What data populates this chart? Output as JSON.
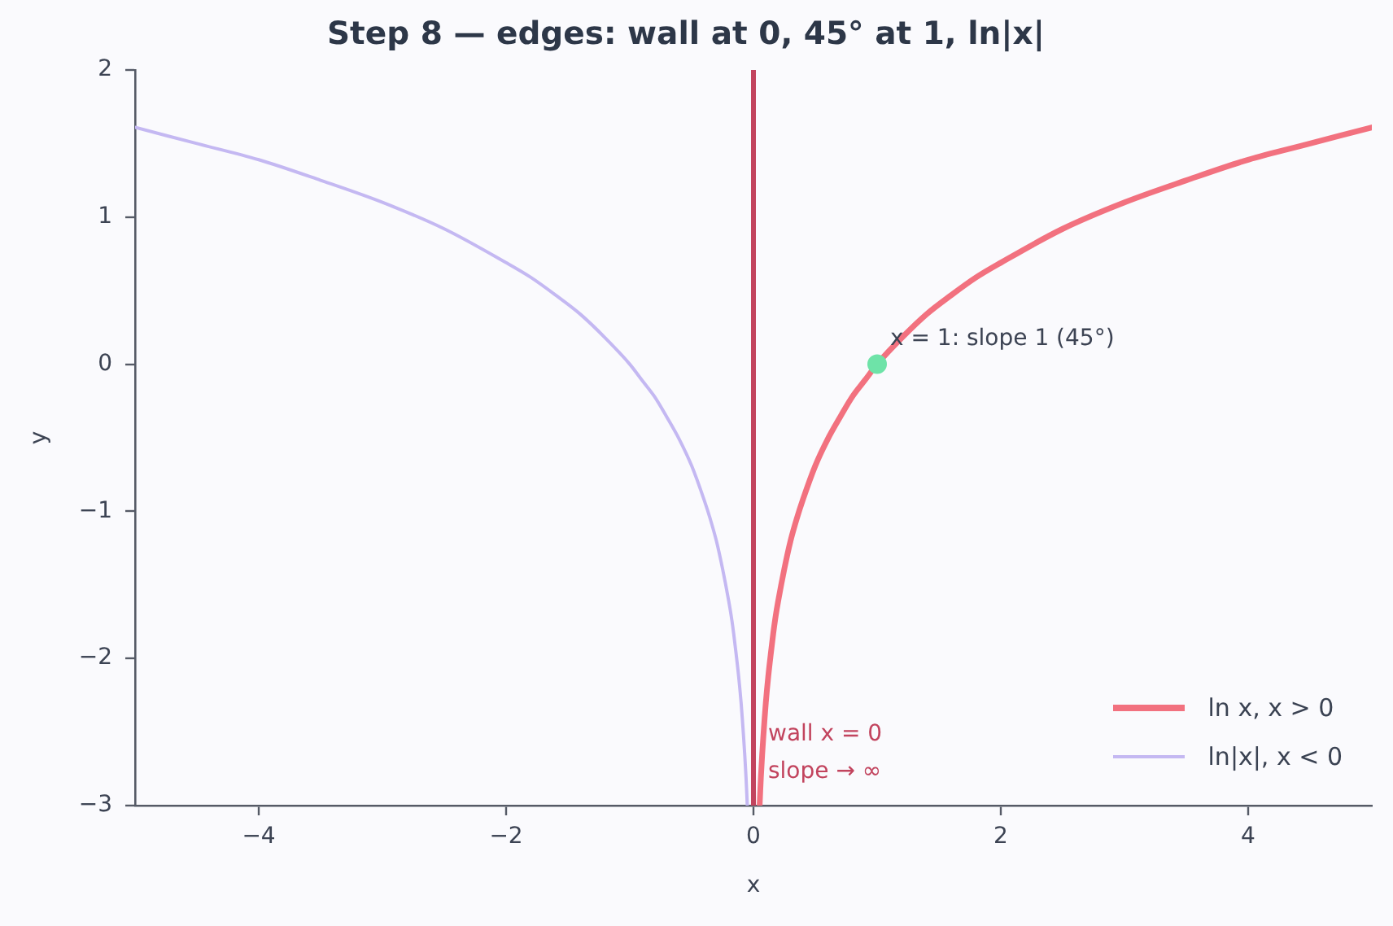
{
  "chart_data": {
    "type": "line",
    "title": "Step 8 — edges: wall at 0, 45° at 1, ln|x|",
    "xlabel": "x",
    "ylabel": "y",
    "series": [
      {
        "name": "ln x, x > 0",
        "color": "#f2717f",
        "x": [
          0.05,
          0.055,
          0.06,
          0.07,
          0.08,
          0.09,
          0.1,
          0.12,
          0.14,
          0.16,
          0.18,
          0.2,
          0.25,
          0.3,
          0.35,
          0.4,
          0.5,
          0.6,
          0.7,
          0.8,
          0.9,
          1,
          1.2,
          1.4,
          1.6,
          1.8,
          2,
          2.5,
          3,
          3.5,
          4,
          4.5,
          5
        ],
        "values": [
          -3.0,
          -2.9,
          -2.81,
          -2.66,
          -2.53,
          -2.41,
          -2.3,
          -2.12,
          -1.97,
          -1.83,
          -1.71,
          -1.61,
          -1.39,
          -1.2,
          -1.05,
          -0.92,
          -0.69,
          -0.51,
          -0.36,
          -0.22,
          -0.11,
          0,
          0.18,
          0.34,
          0.47,
          0.59,
          0.69,
          0.92,
          1.1,
          1.25,
          1.39,
          1.5,
          1.61
        ]
      },
      {
        "name": "ln|x|, x < 0",
        "color": "#c4b8f2",
        "x": [
          -5,
          -4.5,
          -4,
          -3.5,
          -3,
          -2.5,
          -2,
          -1.8,
          -1.6,
          -1.4,
          -1.2,
          -1,
          -0.9,
          -0.8,
          -0.7,
          -0.6,
          -0.5,
          -0.4,
          -0.35,
          -0.3,
          -0.25,
          -0.2,
          -0.18,
          -0.16,
          -0.14,
          -0.12,
          -0.1,
          -0.09,
          -0.08,
          -0.07,
          -0.06,
          -0.055,
          -0.05
        ],
        "values": [
          1.61,
          1.5,
          1.39,
          1.25,
          1.1,
          0.92,
          0.69,
          0.59,
          0.47,
          0.34,
          0.18,
          0,
          -0.11,
          -0.22,
          -0.36,
          -0.51,
          -0.69,
          -0.92,
          -1.05,
          -1.2,
          -1.39,
          -1.61,
          -1.71,
          -1.83,
          -1.97,
          -2.12,
          -2.3,
          -2.41,
          -2.53,
          -2.66,
          -2.81,
          -2.9,
          -3.0
        ]
      },
      {
        "type": "scatter",
        "color": "#6ee3a8",
        "marker": "circle",
        "x": [
          1
        ],
        "values": [
          0
        ]
      }
    ],
    "xlim": [
      -5,
      5
    ],
    "ylim": [
      -3,
      2
    ],
    "xticks": [
      -4,
      -2,
      0,
      2,
      4
    ],
    "yticks": [
      -3,
      -2,
      -1,
      0,
      1,
      2
    ],
    "ref_lines": [
      {
        "axis": "x",
        "value": 0,
        "label": "wall x = 0\nslope → ∞",
        "color": "#c2445e"
      }
    ],
    "annotations": [
      {
        "text": "x = 1: slope 1 (45°)",
        "x": 1,
        "y": 0
      }
    ],
    "grid": false,
    "legend": "bottom right"
  }
}
